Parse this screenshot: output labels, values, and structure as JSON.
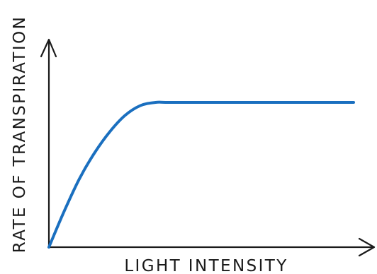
{
  "chart_data": {
    "type": "line",
    "title": "",
    "xlabel": "LIGHT INTENSITY",
    "ylabel": "RATE OF TRANSPIRATION",
    "xlim": [
      0,
      100
    ],
    "ylim": [
      0,
      100
    ],
    "grid": false,
    "legend": "none",
    "x_ticks": [],
    "y_ticks": [],
    "series": [
      {
        "color": "#1a6fbf",
        "points": [
          {
            "x": 0,
            "y": 0
          },
          {
            "x": 5,
            "y": 22
          },
          {
            "x": 10,
            "y": 42
          },
          {
            "x": 15,
            "y": 58
          },
          {
            "x": 20,
            "y": 71
          },
          {
            "x": 25,
            "y": 81
          },
          {
            "x": 30,
            "y": 87
          },
          {
            "x": 35,
            "y": 89
          },
          {
            "x": 40,
            "y": 89
          },
          {
            "x": 60,
            "y": 89
          },
          {
            "x": 80,
            "y": 89
          },
          {
            "x": 100,
            "y": 89
          }
        ]
      }
    ]
  }
}
